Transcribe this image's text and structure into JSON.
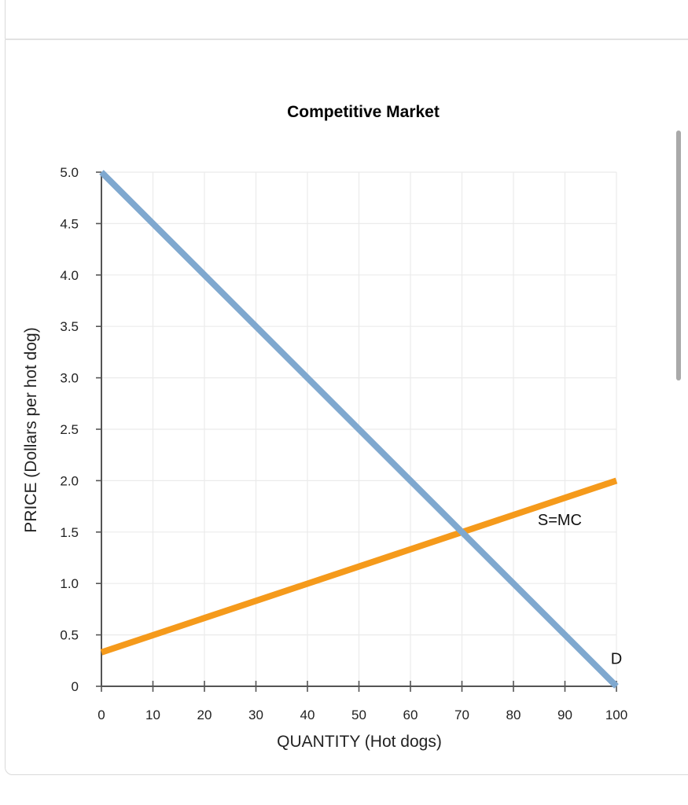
{
  "chart_data": {
    "type": "line",
    "title": "Competitive Market",
    "xlabel": "QUANTITY (Hot dogs)",
    "ylabel": "PRICE (Dollars per hot dog)",
    "xlim": [
      0,
      100
    ],
    "ylim": [
      0,
      5
    ],
    "x_ticks": [
      0,
      10,
      20,
      30,
      40,
      50,
      60,
      70,
      80,
      90,
      100
    ],
    "x_tick_labels": [
      "0",
      "10",
      "20",
      "30",
      "40",
      "50",
      "60",
      "70",
      "80",
      "90",
      "100"
    ],
    "y_ticks": [
      0,
      0.5,
      1,
      1.5,
      2,
      2.5,
      3,
      3.5,
      4,
      4.5,
      5
    ],
    "y_tick_labels": [
      "0",
      "0.5",
      "1.0",
      "1.5",
      "2.0",
      "2.5",
      "3.0",
      "3.5",
      "4.0",
      "4.5",
      "5.0"
    ],
    "grid": true,
    "series": [
      {
        "name": "D",
        "color": "#7fa8cf",
        "x": [
          0,
          100
        ],
        "y": [
          5,
          0
        ],
        "label_at": [
          100,
          0.27
        ]
      },
      {
        "name": "S=MC",
        "color": "#f59a1b",
        "x": [
          0,
          100
        ],
        "y": [
          0.33,
          2
        ],
        "label_at": [
          89,
          1.62
        ]
      }
    ]
  }
}
